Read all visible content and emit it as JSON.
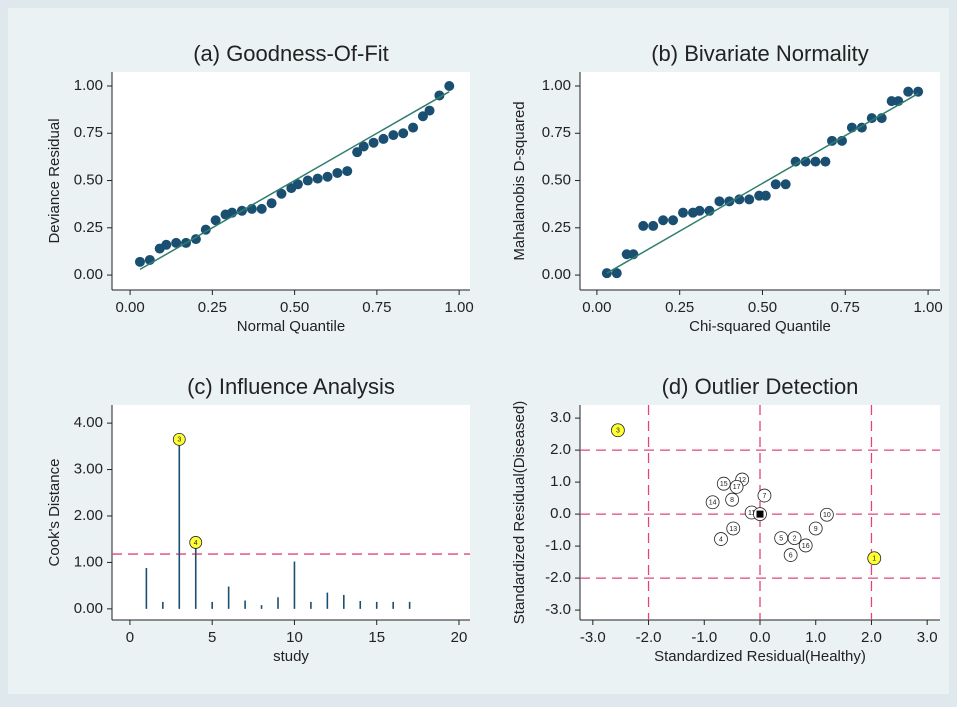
{
  "chart_data": [
    {
      "type": "scatter",
      "title": "(a) Goodness-Of-Fit",
      "xlabel": "Normal Quantile",
      "ylabel": "Deviance Residual",
      "xlim": [
        -0.055,
        1.033
      ],
      "ylim": [
        -0.079,
        1.074
      ],
      "xticks": [
        {
          "value": 0,
          "label": "0.00"
        },
        {
          "value": 0.25,
          "label": "0.25"
        },
        {
          "value": 0.5,
          "label": "0.50"
        },
        {
          "value": 0.75,
          "label": "0.75"
        },
        {
          "value": 1,
          "label": "1.00"
        }
      ],
      "yticks": [
        {
          "value": 0,
          "label": "0.00"
        },
        {
          "value": 0.25,
          "label": "0.25"
        },
        {
          "value": 0.5,
          "label": "0.50"
        },
        {
          "value": 0.75,
          "label": "0.75"
        },
        {
          "value": 1,
          "label": "1.00"
        }
      ],
      "series": [
        {
          "kind": "scatter",
          "color": "#1a4f72",
          "x": [
            0.03,
            0.06,
            0.09,
            0.11,
            0.14,
            0.17,
            0.2,
            0.23,
            0.26,
            0.29,
            0.31,
            0.34,
            0.37,
            0.4,
            0.43,
            0.46,
            0.49,
            0.51,
            0.54,
            0.57,
            0.6,
            0.63,
            0.66,
            0.69,
            0.71,
            0.74,
            0.77,
            0.8,
            0.83,
            0.86,
            0.89,
            0.91,
            0.94,
            0.97
          ],
          "values": [
            0.07,
            0.08,
            0.14,
            0.16,
            0.17,
            0.17,
            0.19,
            0.24,
            0.29,
            0.32,
            0.33,
            0.34,
            0.35,
            0.35,
            0.38,
            0.43,
            0.46,
            0.48,
            0.5,
            0.51,
            0.52,
            0.54,
            0.55,
            0.65,
            0.68,
            0.7,
            0.72,
            0.74,
            0.75,
            0.78,
            0.84,
            0.87,
            0.95,
            1.0
          ]
        },
        {
          "kind": "line",
          "color": "#2e7d6e",
          "x": [
            0.03,
            0.97
          ],
          "values": [
            0.03,
            0.97
          ]
        }
      ]
    },
    {
      "type": "scatter",
      "title": "(b) Bivariate Normality",
      "xlabel": "Chi-squared Quantile",
      "ylabel": "Mahalanobis D-squared",
      "xlim": [
        -0.051,
        1.036
      ],
      "ylim": [
        -0.079,
        1.074
      ],
      "xticks": [
        {
          "value": 0,
          "label": "0.00"
        },
        {
          "value": 0.25,
          "label": "0.25"
        },
        {
          "value": 0.5,
          "label": "0.50"
        },
        {
          "value": 0.75,
          "label": "0.75"
        },
        {
          "value": 1,
          "label": "1.00"
        }
      ],
      "yticks": [
        {
          "value": 0,
          "label": "0.00"
        },
        {
          "value": 0.25,
          "label": "0.25"
        },
        {
          "value": 0.5,
          "label": "0.50"
        },
        {
          "value": 0.75,
          "label": "0.75"
        },
        {
          "value": 1,
          "label": "1.00"
        }
      ],
      "series": [
        {
          "kind": "scatter",
          "color": "#1a4f72",
          "x": [
            0.03,
            0.06,
            0.09,
            0.11,
            0.14,
            0.17,
            0.2,
            0.23,
            0.26,
            0.29,
            0.31,
            0.34,
            0.37,
            0.4,
            0.43,
            0.46,
            0.49,
            0.51,
            0.54,
            0.57,
            0.6,
            0.63,
            0.66,
            0.69,
            0.71,
            0.74,
            0.77,
            0.8,
            0.83,
            0.86,
            0.89,
            0.91,
            0.94,
            0.97
          ],
          "values": [
            0.01,
            0.01,
            0.11,
            0.11,
            0.26,
            0.26,
            0.29,
            0.29,
            0.33,
            0.33,
            0.34,
            0.34,
            0.39,
            0.39,
            0.4,
            0.4,
            0.42,
            0.42,
            0.48,
            0.48,
            0.6,
            0.6,
            0.6,
            0.6,
            0.71,
            0.71,
            0.78,
            0.78,
            0.83,
            0.83,
            0.92,
            0.92,
            0.97,
            0.97
          ]
        },
        {
          "kind": "line",
          "color": "#2e7d6e",
          "x": [
            0.03,
            0.97
          ],
          "values": [
            0.01,
            0.96
          ]
        }
      ]
    },
    {
      "type": "spike",
      "title": "(c) Influence Analysis",
      "xlabel": "study",
      "ylabel": "Cook's Distance",
      "xlim": [
        -1.09,
        20.67
      ],
      "ylim": [
        -0.24,
        4.39
      ],
      "xticks": [
        0,
        5,
        10,
        15,
        20
      ],
      "yticks": [
        {
          "value": 0,
          "label": "0.00"
        },
        {
          "value": 1,
          "label": "1.00"
        },
        {
          "value": 2,
          "label": "2.00"
        },
        {
          "value": 3,
          "label": "3.00"
        },
        {
          "value": 4,
          "label": "4.00"
        }
      ],
      "reference_lines": {
        "y": [
          1.18
        ]
      },
      "reference_color": "#e0457a",
      "series": [
        {
          "color": "#1a4f72",
          "marker_color": "#ffff33",
          "x": [
            1,
            2,
            3,
            4,
            5,
            6,
            7,
            8,
            9,
            10,
            11,
            12,
            13,
            14,
            15,
            16,
            17
          ],
          "values": [
            0.88,
            0.15,
            3.65,
            1.43,
            0.15,
            0.48,
            0.18,
            0.08,
            0.25,
            1.02,
            0.15,
            0.35,
            0.3,
            0.17,
            0.15,
            0.15,
            0.15
          ],
          "labels": [
            null,
            null,
            "3",
            "4",
            null,
            null,
            null,
            null,
            null,
            null,
            null,
            null,
            null,
            null,
            null,
            null,
            null
          ]
        }
      ]
    },
    {
      "type": "scatter",
      "title": "(d) Outlier Detection",
      "xlabel": "Standardized Residual(Healthy)",
      "ylabel": "Standardized Residual(Diseased)",
      "xlim": [
        -3.23,
        3.23
      ],
      "ylim": [
        -3.31,
        3.41
      ],
      "xticks": [
        {
          "value": -3,
          "label": "-3.0"
        },
        {
          "value": -2,
          "label": "-2.0"
        },
        {
          "value": -1,
          "label": "-1.0"
        },
        {
          "value": 0,
          "label": "0.0"
        },
        {
          "value": 1,
          "label": "1.0"
        },
        {
          "value": 2,
          "label": "2.0"
        },
        {
          "value": 3,
          "label": "3.0"
        }
      ],
      "yticks": [
        {
          "value": -3,
          "label": "-3.0"
        },
        {
          "value": -2,
          "label": "-2.0"
        },
        {
          "value": -1,
          "label": "-1.0"
        },
        {
          "value": 0,
          "label": "0.0"
        },
        {
          "value": 1,
          "label": "1.0"
        },
        {
          "value": 2,
          "label": "2.0"
        },
        {
          "value": 3,
          "label": "3.0"
        }
      ],
      "reference_lines": {
        "x": [
          -2,
          0,
          2
        ],
        "y": [
          -2,
          0,
          2
        ]
      },
      "reference_color": "#e0457a",
      "series": [
        {
          "kind": "labeled",
          "x": [
            2.05,
            0.62,
            -2.55,
            -0.7,
            0.38,
            0.55,
            0.08,
            -0.5,
            1.0,
            1.2,
            -0.15,
            -0.32,
            -0.48,
            -0.85,
            -0.65,
            0.82,
            -0.42
          ],
          "values": [
            -1.38,
            -0.75,
            2.62,
            -0.78,
            -0.75,
            -1.28,
            0.58,
            0.45,
            -0.45,
            -0.02,
            0.05,
            1.08,
            -0.45,
            0.37,
            0.95,
            -0.98,
            0.85
          ],
          "labels": [
            "1",
            "2",
            "3",
            "4",
            "5",
            "6",
            "7",
            "8",
            "9",
            "10",
            "11",
            "12",
            "13",
            "14",
            "15",
            "16",
            "17"
          ],
          "point_colors": [
            "#ffff33",
            "#ffffff",
            "#ffff33",
            "#ffffff",
            "#ffffff",
            "#ffffff",
            "#ffffff",
            "#ffffff",
            "#ffffff",
            "#ffffff",
            "#ffffff",
            "#ffffff",
            "#ffffff",
            "#ffffff",
            "#ffffff",
            "#ffffff",
            "#ffffff"
          ]
        },
        {
          "kind": "center",
          "color": "#000000",
          "x": [
            0
          ],
          "values": [
            0
          ]
        }
      ]
    }
  ]
}
